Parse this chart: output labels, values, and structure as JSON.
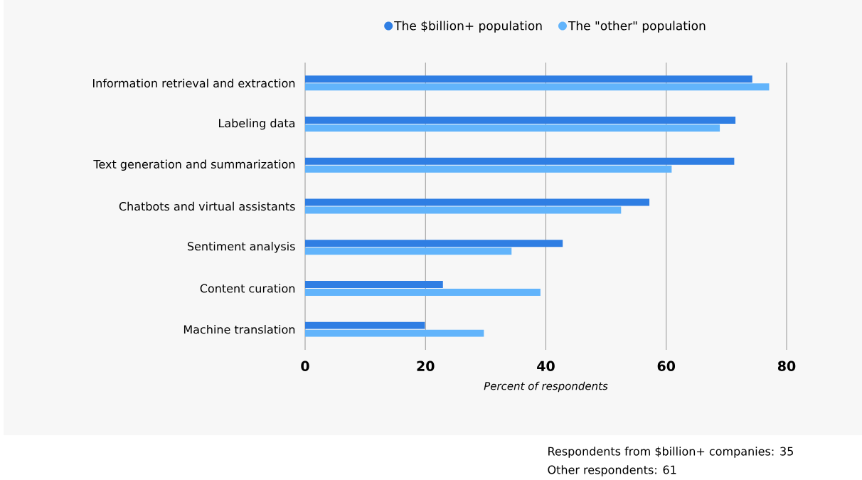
{
  "chart_data": {
    "type": "bar",
    "orientation": "horizontal",
    "xlabel": "Percent of respondents",
    "categories": [
      "Information retrieval and extraction",
      "Labeling data",
      "Text generation and summarization",
      "Chatbots and virtual assistants",
      "Sentiment analysis",
      "Content curation",
      "Machine translation"
    ],
    "series": [
      {
        "name": "The $billion+ population",
        "color": "#2f7ee3",
        "values": [
          74.3,
          71.5,
          71.3,
          57.2,
          42.8,
          22.9,
          19.9
        ]
      },
      {
        "name": "The \"other\" population",
        "color": "#62b4fb",
        "values": [
          77.1,
          68.9,
          60.9,
          52.5,
          34.3,
          39.1,
          29.7
        ]
      }
    ],
    "xlim": [
      0,
      80
    ],
    "xticks": [
      0,
      20,
      40,
      60,
      80
    ],
    "grid": "x",
    "legend": "top",
    "annotations": [
      "Respondents from $billion+ companies: 35",
      "Other respondents: 61"
    ]
  }
}
